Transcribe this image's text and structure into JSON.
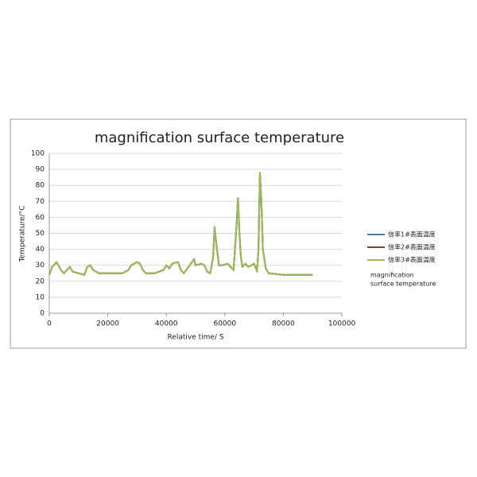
{
  "chart_data": {
    "type": "line",
    "title": "magnification surface temperature",
    "x_label": "Relative time/ S",
    "y_label": "Temperature/°C",
    "x": [
      0,
      1000,
      2500,
      4000,
      5000,
      7000,
      8000,
      10000,
      12000,
      13000,
      14000,
      15000,
      17000,
      20000,
      25000,
      27000,
      28000,
      30000,
      31000,
      32000,
      33000,
      36000,
      39000,
      40000,
      41000,
      42000,
      44000,
      45000,
      46000,
      48000,
      49500,
      50000,
      52000,
      53000,
      54000,
      55000,
      56000,
      56500,
      57000,
      58000,
      59000,
      61000,
      62500,
      63000,
      64000,
      64500,
      65000,
      65500,
      66000,
      67000,
      68000,
      70000,
      71000,
      71500,
      72000,
      72500,
      73000,
      74000,
      75000,
      80000,
      85000,
      90000
    ],
    "series": [
      {
        "name": "信率1#表面温度",
        "color": "#4a7aa8",
        "values": [
          24,
          29,
          32,
          27,
          25,
          29,
          26,
          25,
          24,
          29,
          30,
          27,
          25,
          25,
          25,
          27,
          30,
          32,
          31,
          27,
          25,
          25,
          27,
          30,
          28,
          31,
          32,
          27,
          25,
          30,
          34,
          30,
          31,
          30,
          26,
          25,
          35,
          54,
          45,
          30,
          30,
          31,
          28,
          27,
          55,
          72,
          50,
          35,
          29,
          31,
          29,
          31,
          26,
          40,
          88,
          70,
          40,
          28,
          25,
          24,
          24,
          24
        ]
      },
      {
        "name": "信率2#表面温度",
        "color": "#8b3a3a",
        "values": [
          24,
          29,
          32,
          27,
          25,
          29,
          26,
          25,
          24,
          29,
          30,
          27,
          25,
          25,
          25,
          27,
          30,
          32,
          31,
          27,
          25,
          25,
          27,
          30,
          28,
          31,
          32,
          27,
          25,
          30,
          34,
          30,
          31,
          30,
          26,
          25,
          35,
          54,
          45,
          30,
          30,
          31,
          28,
          27,
          55,
          72,
          50,
          35,
          29,
          31,
          29,
          31,
          26,
          40,
          88,
          70,
          40,
          28,
          25,
          24,
          24,
          24
        ]
      },
      {
        "name": "信率3#表面温度",
        "color": "#9bbb59",
        "values": [
          24,
          29,
          32,
          27,
          25,
          29,
          26,
          25,
          24,
          29,
          30,
          27,
          25,
          25,
          25,
          27,
          30,
          32,
          31,
          27,
          25,
          25,
          27,
          30,
          28,
          31,
          32,
          27,
          25,
          30,
          34,
          30,
          31,
          30,
          26,
          25,
          35,
          54,
          45,
          30,
          30,
          31,
          28,
          27,
          55,
          72,
          50,
          35,
          29,
          31,
          29,
          31,
          26,
          40,
          88,
          70,
          40,
          28,
          25,
          24,
          24,
          24
        ]
      }
    ],
    "legend_note": [
      "magnification",
      "surface temperature"
    ],
    "xlim": [
      0,
      100000
    ],
    "xticks": [
      0,
      20000,
      40000,
      60000,
      80000,
      100000
    ],
    "ylim": [
      0,
      100
    ],
    "yticks": [
      0,
      10,
      20,
      30,
      40,
      50,
      60,
      70,
      80,
      90,
      100
    ],
    "grid": true,
    "legend": "right"
  }
}
